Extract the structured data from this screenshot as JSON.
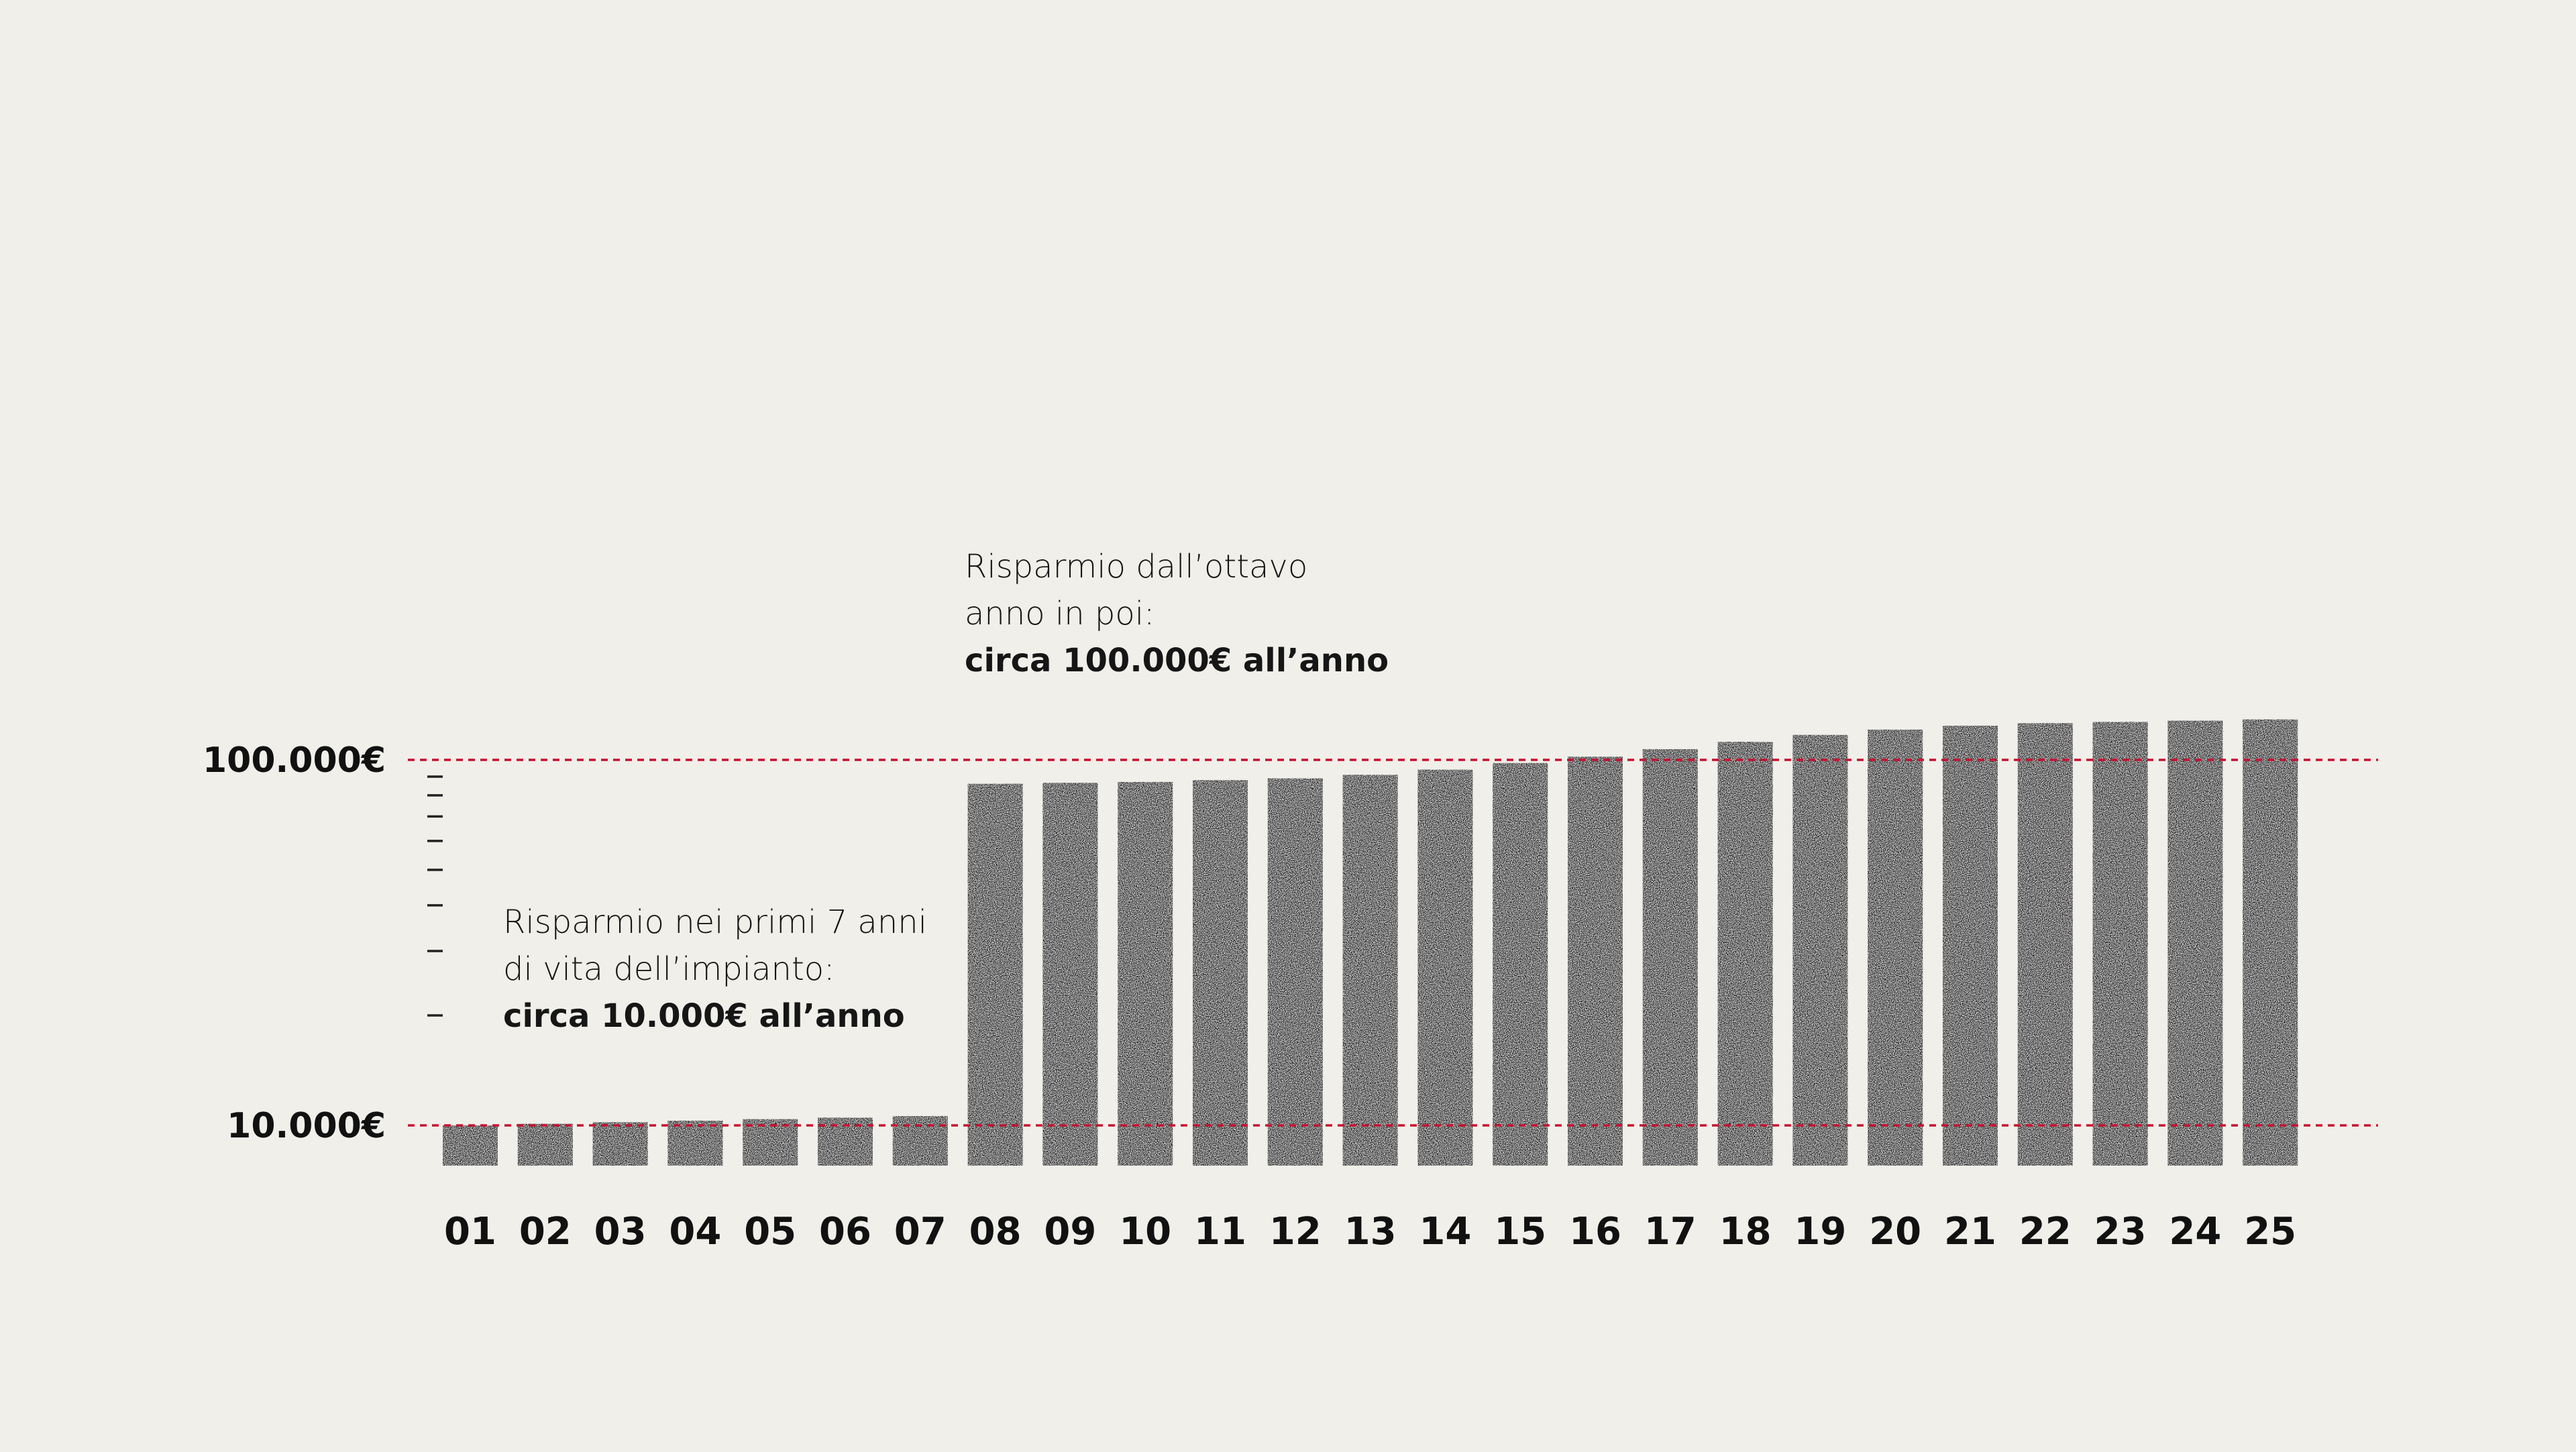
{
  "chart_data": {
    "type": "bar",
    "categories": [
      "01",
      "02",
      "03",
      "04",
      "05",
      "06",
      "07",
      "08",
      "09",
      "10",
      "11",
      "12",
      "13",
      "14",
      "15",
      "16",
      "17",
      "18",
      "19",
      "20",
      "21",
      "22",
      "23",
      "24",
      "25"
    ],
    "values": [
      10000,
      10100,
      10200,
      10300,
      10400,
      10500,
      10600,
      86000,
      86500,
      87000,
      88000,
      89000,
      91000,
      94000,
      98000,
      102000,
      107000,
      112000,
      117000,
      121000,
      124000,
      126000,
      127000,
      128000,
      129000
    ],
    "yscale": "log",
    "ylim": [
      7700,
      150000
    ],
    "reference_lines": [
      {
        "value": 100000,
        "label": "100.000€",
        "color": "#c8102e",
        "style": "dashed"
      },
      {
        "value": 10000,
        "label": "10.000€",
        "color": "#c8102e",
        "style": "dashed"
      }
    ],
    "minor_ticks": [
      20000,
      30000,
      40000,
      50000,
      60000,
      70000,
      80000,
      90000
    ],
    "bar_color": "#0d0d0d",
    "annotations": [
      {
        "lines": [
          "Risparmio nei primi 7 anni",
          "di vita dell’impianto:"
        ],
        "bold": "circa 10.000€ all’anno"
      },
      {
        "lines": [
          "Risparmio dall’ottavo",
          "anno in poi:"
        ],
        "bold": "circa 100.000€ all’anno"
      }
    ]
  }
}
